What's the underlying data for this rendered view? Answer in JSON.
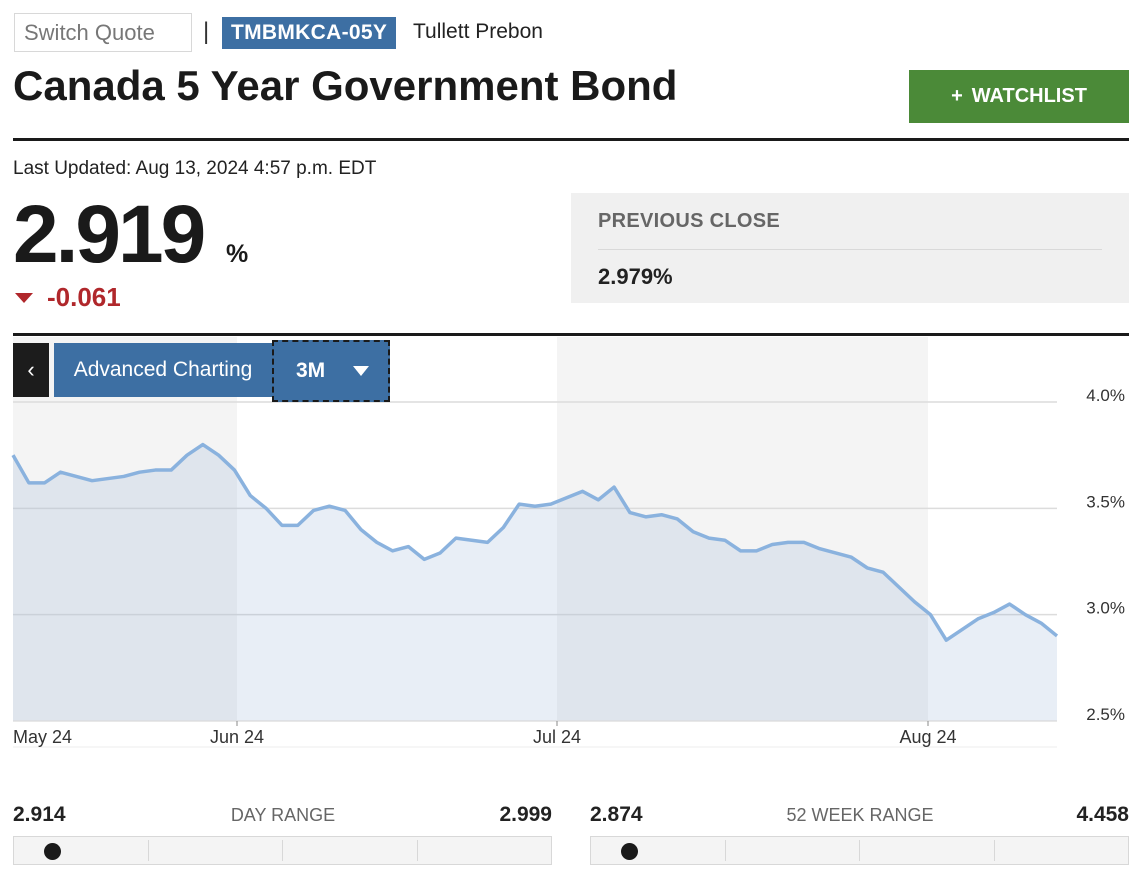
{
  "header": {
    "switch_quote_placeholder": "Switch Quote",
    "separator": "|",
    "symbol": "TMBMKCA-05Y",
    "source": "Tullett Prebon",
    "title": "Canada 5 Year Government Bond",
    "watchlist_plus": "+",
    "watchlist_label": "WATCHLIST"
  },
  "quote": {
    "last_updated": "Last Updated: Aug 13, 2024 4:57 p.m. EDT",
    "price": "2.919",
    "unit": "%",
    "change": "-0.061",
    "direction": "down"
  },
  "previous_close": {
    "label": "PREVIOUS CLOSE",
    "value": "2.979%"
  },
  "chart_controls": {
    "back_label": "‹",
    "advanced_label": "Advanced Charting",
    "range_value": "3M"
  },
  "chart_data": {
    "type": "area",
    "x_tick_labels": [
      "May 24",
      "Jun 24",
      "Jul 24",
      "Aug 24"
    ],
    "y_tick_labels": [
      "4.0%",
      "3.5%",
      "3.0%",
      "2.5%"
    ],
    "y_ticks": [
      4.0,
      3.5,
      3.0,
      2.5
    ],
    "ylim": [
      2.5,
      4.0
    ],
    "grid": true,
    "series": [
      {
        "values": [
          3.75,
          3.62,
          3.62,
          3.67,
          3.65,
          3.63,
          3.64,
          3.65,
          3.67,
          3.68,
          3.68,
          3.75,
          3.8,
          3.75,
          3.68,
          3.56,
          3.5,
          3.42,
          3.42,
          3.49,
          3.51,
          3.49,
          3.4,
          3.34,
          3.3,
          3.32,
          3.26,
          3.29,
          3.36,
          3.35,
          3.34,
          3.41,
          3.52,
          3.51,
          3.52,
          3.55,
          3.58,
          3.54,
          3.6,
          3.48,
          3.46,
          3.47,
          3.45,
          3.39,
          3.36,
          3.35,
          3.3,
          3.3,
          3.33,
          3.34,
          3.34,
          3.31,
          3.29,
          3.27,
          3.22,
          3.2,
          3.13,
          3.06,
          3.0,
          2.88,
          2.93,
          2.98,
          3.01,
          3.05,
          3.0,
          2.96,
          2.9
        ]
      }
    ]
  },
  "day_range": {
    "low": "2.914",
    "label": "DAY RANGE",
    "high": "2.999",
    "position": 0.0
  },
  "week52_range": {
    "low": "2.874",
    "label": "52 WEEK RANGE",
    "high": "4.458",
    "position": 0.0
  }
}
